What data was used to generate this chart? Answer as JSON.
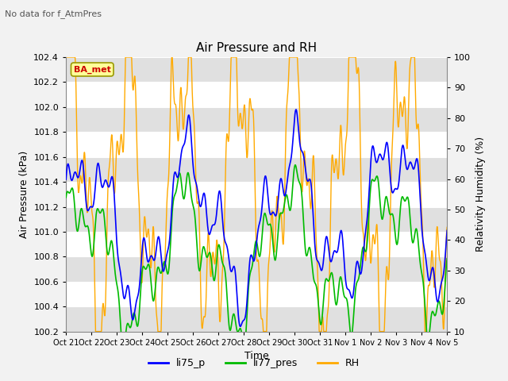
{
  "title": "Air Pressure and RH",
  "subtitle": "No data for f_AtmPres",
  "xlabel": "Time",
  "ylabel_left": "Air Pressure (kPa)",
  "ylabel_right": "Relativity Humidity (%)",
  "ylim_left": [
    100.2,
    102.4
  ],
  "ylim_right": [
    10,
    100
  ],
  "yticks_left": [
    100.2,
    100.4,
    100.6,
    100.8,
    101.0,
    101.2,
    101.4,
    101.6,
    101.8,
    102.0,
    102.2,
    102.4
  ],
  "yticks_right": [
    10,
    20,
    30,
    40,
    50,
    60,
    70,
    80,
    90,
    100
  ],
  "xtick_labels": [
    "Oct 21",
    "Oct 22",
    "Oct 23",
    "Oct 24",
    "Oct 25",
    "Oct 26",
    "Oct 27",
    "Oct 28",
    "Oct 29",
    "Oct 30",
    "Oct 31",
    "Nov 1",
    "Nov 2",
    "Nov 3",
    "Nov 4",
    "Nov 5"
  ],
  "legend_labels": [
    "li75_p",
    "li77_pres",
    "RH"
  ],
  "legend_colors": [
    "#0000ff",
    "#00bb00",
    "#ffaa00"
  ],
  "ba_met_box_color": "#ffff99",
  "ba_met_text_color": "#cc0000",
  "bg_color": "#ffffff",
  "band_color": "#e0e0e0",
  "fig_bg": "#f2f2f2",
  "line_blue": "#0000ff",
  "line_green": "#00bb00",
  "line_orange": "#ffaa00"
}
